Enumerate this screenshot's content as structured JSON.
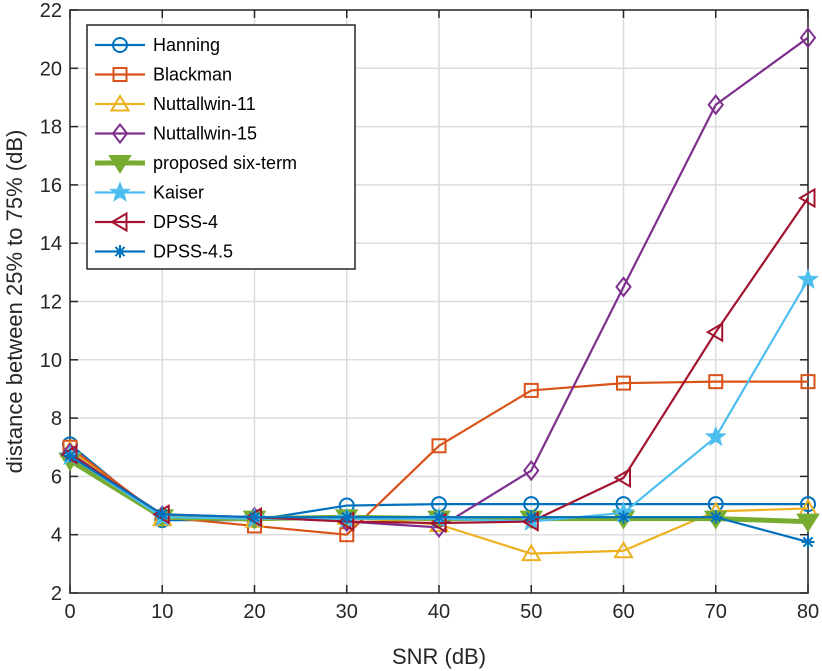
{
  "chart_data": {
    "type": "line",
    "title": "",
    "xlabel": "SNR (dB)",
    "ylabel": "distance between 25% to 75% (dB)",
    "xlim": [
      0,
      80
    ],
    "ylim": [
      2,
      22
    ],
    "xticks": [
      0,
      10,
      20,
      30,
      40,
      50,
      60,
      70,
      80
    ],
    "yticks": [
      2,
      4,
      6,
      8,
      10,
      12,
      14,
      16,
      18,
      20,
      22
    ],
    "grid": true,
    "legend_position": "top-left",
    "x": [
      0,
      10,
      20,
      30,
      40,
      50,
      60,
      70,
      80
    ],
    "series": [
      {
        "name": "Hanning",
        "color": "#0072BD",
        "marker": "circle",
        "values": [
          7.1,
          4.5,
          4.5,
          5.0,
          5.05,
          5.05,
          5.05,
          5.05,
          5.05
        ]
      },
      {
        "name": "Blackman",
        "color": "#D95319",
        "marker": "square",
        "values": [
          7.0,
          4.6,
          4.3,
          4.0,
          7.05,
          8.95,
          9.2,
          9.25,
          9.25
        ]
      },
      {
        "name": "Nuttallwin-11",
        "color": "#EDB120",
        "marker": "triangle-up",
        "values": [
          6.9,
          4.55,
          4.5,
          4.6,
          4.35,
          3.35,
          3.45,
          4.8,
          4.9
        ]
      },
      {
        "name": "Nuttallwin-15",
        "color": "#7E2F8E",
        "marker": "diamond",
        "values": [
          6.8,
          4.65,
          4.6,
          4.45,
          4.25,
          6.2,
          12.5,
          18.75,
          21.05
        ]
      },
      {
        "name": "proposed six-term",
        "color": "#77AC30",
        "marker": "triangle-down",
        "values": [
          6.55,
          4.6,
          4.55,
          4.6,
          4.55,
          4.55,
          4.55,
          4.55,
          4.45
        ]
      },
      {
        "name": "Kaiser",
        "color": "#4DBEEE",
        "marker": "star",
        "values": [
          6.7,
          4.6,
          4.55,
          4.55,
          4.55,
          4.45,
          4.75,
          7.35,
          12.75
        ]
      },
      {
        "name": "DPSS-4",
        "color": "#A2142F",
        "marker": "triangle-left",
        "values": [
          6.75,
          4.7,
          4.6,
          4.45,
          4.4,
          4.45,
          5.95,
          10.95,
          15.55
        ]
      },
      {
        "name": "DPSS-4.5",
        "color": "#0072BD",
        "marker": "asterisk",
        "values": [
          6.7,
          4.7,
          4.6,
          4.6,
          4.6,
          4.6,
          4.6,
          4.6,
          3.75
        ]
      }
    ]
  }
}
